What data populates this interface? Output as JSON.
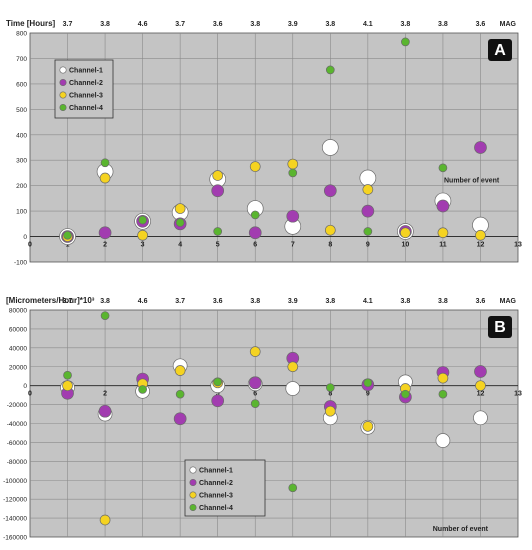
{
  "chart_data": [
    {
      "panel": "A",
      "type": "scatter",
      "ylabel": "Time [Hours]",
      "xlabel": "Number of event",
      "top_axis_label": "MAG",
      "mag_values": [
        "3.7",
        "3.8",
        "4.6",
        "3.7",
        "3.6",
        "3.8",
        "3.9",
        "3.8",
        "4.1",
        "3.8",
        "3.8",
        "3.6"
      ],
      "xlim": [
        0,
        13
      ],
      "ylim": [
        -100,
        800
      ],
      "xticks": [
        0,
        1,
        2,
        3,
        4,
        5,
        6,
        7,
        8,
        9,
        10,
        11,
        12,
        13
      ],
      "yticks": [
        -100,
        0,
        100,
        200,
        300,
        400,
        500,
        600,
        700,
        800
      ],
      "grid": true,
      "legend_position": "top-left",
      "series": [
        {
          "name": "Channel-1",
          "color": "#ffffff",
          "values": [
            [
              1,
              0
            ],
            [
              2,
              255
            ],
            [
              3,
              60
            ],
            [
              4,
              95
            ],
            [
              5,
              225
            ],
            [
              6,
              110
            ],
            [
              7,
              40
            ],
            [
              8,
              350
            ],
            [
              9,
              230
            ],
            [
              10,
              20
            ],
            [
              11,
              140
            ],
            [
              12,
              45
            ]
          ]
        },
        {
          "name": "Channel-2",
          "color": "#a23cb0",
          "values": [
            [
              1,
              0
            ],
            [
              2,
              15
            ],
            [
              3,
              60
            ],
            [
              4,
              50
            ],
            [
              5,
              180
            ],
            [
              6,
              15
            ],
            [
              7,
              80
            ],
            [
              8,
              180
            ],
            [
              9,
              100
            ],
            [
              10,
              20
            ],
            [
              11,
              120
            ],
            [
              12,
              350
            ]
          ]
        },
        {
          "name": "Channel-3",
          "color": "#f5d321",
          "values": [
            [
              1,
              0
            ],
            [
              2,
              230
            ],
            [
              3,
              5
            ],
            [
              4,
              110
            ],
            [
              5,
              240
            ],
            [
              6,
              275
            ],
            [
              7,
              285
            ],
            [
              8,
              25
            ],
            [
              9,
              185
            ],
            [
              10,
              15
            ],
            [
              11,
              15
            ],
            [
              12,
              5
            ]
          ]
        },
        {
          "name": "Channel-4",
          "color": "#5ab52f",
          "values": [
            [
              1,
              5
            ],
            [
              2,
              290
            ],
            [
              3,
              65
            ],
            [
              4,
              55
            ],
            [
              5,
              20
            ],
            [
              6,
              85
            ],
            [
              7,
              250
            ],
            [
              8,
              655
            ],
            [
              9,
              20
            ],
            [
              10,
              765
            ],
            [
              11,
              270
            ]
          ]
        }
      ]
    },
    {
      "panel": "B",
      "type": "scatter",
      "ylabel": "[Micrometers/Hour]*10³",
      "xlabel": "Number of event",
      "top_axis_label": "MAG",
      "mag_values": [
        "3.7",
        "3.8",
        "4.6",
        "3.7",
        "3.6",
        "3.8",
        "3.9",
        "3.8",
        "4.1",
        "3.8",
        "3.8",
        "3.6"
      ],
      "xlim": [
        0,
        13
      ],
      "ylim": [
        -160000,
        80000
      ],
      "xticks": [
        0,
        1,
        2,
        3,
        4,
        5,
        6,
        7,
        8,
        9,
        10,
        11,
        12,
        13
      ],
      "yticks": [
        -160000,
        -140000,
        -120000,
        -100000,
        -80000,
        -60000,
        -40000,
        -20000,
        0,
        20000,
        40000,
        60000,
        80000
      ],
      "grid": true,
      "legend_position": "bottom-center",
      "series": [
        {
          "name": "Channel-1",
          "color": "#ffffff",
          "values": [
            [
              1,
              -2000
            ],
            [
              2,
              -30000
            ],
            [
              3,
              -6000
            ],
            [
              4,
              21000
            ],
            [
              5,
              0
            ],
            [
              6,
              2000
            ],
            [
              7,
              -3000
            ],
            [
              8,
              -34000
            ],
            [
              9,
              -44000
            ],
            [
              10,
              4000
            ],
            [
              11,
              -58000
            ],
            [
              12,
              -34000
            ]
          ]
        },
        {
          "name": "Channel-2",
          "color": "#a23cb0",
          "values": [
            [
              1,
              -8000
            ],
            [
              2,
              -27000
            ],
            [
              3,
              7000
            ],
            [
              4,
              -35000
            ],
            [
              5,
              -16000
            ],
            [
              6,
              3000
            ],
            [
              7,
              29000
            ],
            [
              8,
              -22000
            ],
            [
              9,
              1000
            ],
            [
              10,
              -12000
            ],
            [
              11,
              14000
            ],
            [
              12,
              15000
            ]
          ]
        },
        {
          "name": "Channel-3",
          "color": "#f5d321",
          "values": [
            [
              1,
              0
            ],
            [
              2,
              -142000
            ],
            [
              3,
              2000
            ],
            [
              4,
              16000
            ],
            [
              5,
              3000
            ],
            [
              6,
              36000
            ],
            [
              7,
              20000
            ],
            [
              8,
              -27000
            ],
            [
              9,
              -43000
            ],
            [
              10,
              -3000
            ],
            [
              11,
              8000
            ],
            [
              12,
              0
            ]
          ]
        },
        {
          "name": "Channel-4",
          "color": "#5ab52f",
          "values": [
            [
              1,
              11000
            ],
            [
              2,
              74000
            ],
            [
              3,
              -4000
            ],
            [
              4,
              -9000
            ],
            [
              5,
              4000
            ],
            [
              6,
              -19000
            ],
            [
              7,
              -108000
            ],
            [
              8,
              -2000
            ],
            [
              9,
              3000
            ],
            [
              10,
              -9000
            ],
            [
              11,
              -9000
            ]
          ]
        }
      ]
    }
  ]
}
